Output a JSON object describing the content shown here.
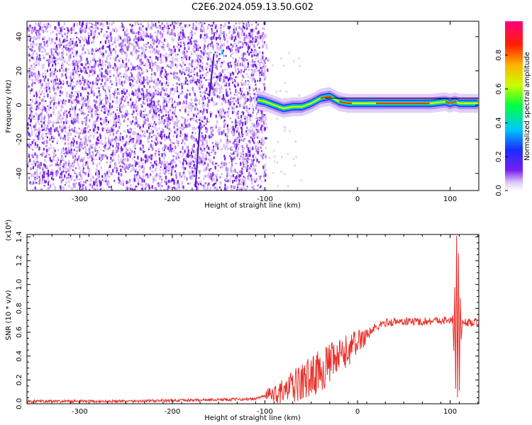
{
  "title": "C2E6.2024.059.13.50.G02",
  "chart_data": [
    {
      "type": "heatmap",
      "xlabel": "Height of straight line (km)",
      "ylabel": "Frequency (Hz)",
      "xlim": [
        -357,
        131
      ],
      "ylim": [
        -50,
        49
      ],
      "xticks": [
        -300,
        -200,
        -100,
        0,
        100
      ],
      "yticks": [
        -40,
        -20,
        0,
        20,
        40
      ],
      "colorbar": {
        "label": "Normalized spectral amplitude",
        "range": [
          0,
          1
        ],
        "ticks": [
          "0.0",
          "0.2",
          "0.4",
          "0.6",
          "0.8"
        ],
        "tick_values": [
          0,
          0.2,
          0.4,
          0.6,
          0.8
        ]
      },
      "noise_region_x": [
        -357,
        -100
      ],
      "signal_ridge": {
        "x": [
          -108,
          -100,
          -90,
          -80,
          -70,
          -60,
          -50,
          -40,
          -30,
          -20,
          -10,
          0,
          20,
          40,
          60,
          80,
          95,
          100,
          105,
          110,
          131
        ],
        "freq": [
          3,
          2,
          0,
          -2,
          -1,
          -1,
          1,
          4,
          5,
          2,
          1,
          1,
          1,
          1,
          1,
          1,
          2,
          1,
          2,
          1,
          1
        ]
      }
    },
    {
      "type": "line",
      "xlabel": "Height of straight line (km)",
      "ylabel": "SNR (10 * v/v)",
      "yscale_label": "(x10⁴)",
      "xlim": [
        -357,
        131
      ],
      "ylim": [
        0,
        1.42
      ],
      "xticks": [
        -300,
        -200,
        -100,
        0,
        100
      ],
      "yticks": [
        0.0,
        0.2,
        0.4,
        0.6,
        0.8,
        1.0,
        1.2,
        1.4
      ],
      "color": "#e8302a",
      "trend": {
        "x": [
          -357,
          -250,
          -180,
          -110,
          -100,
          -80,
          -60,
          -40,
          -20,
          -10,
          0,
          10,
          20,
          30,
          50,
          70,
          90,
          100,
          105,
          131
        ],
        "y": [
          0.02,
          0.02,
          0.03,
          0.04,
          0.07,
          0.1,
          0.18,
          0.28,
          0.38,
          0.45,
          0.52,
          0.58,
          0.64,
          0.68,
          0.69,
          0.69,
          0.7,
          0.7,
          0.68,
          0.68
        ]
      },
      "spike": {
        "x": [
          103,
          104,
          105,
          106,
          107,
          108,
          109,
          110,
          111,
          112,
          113
        ],
        "y": [
          0.72,
          0.45,
          0.95,
          0.15,
          1.42,
          0.08,
          1.25,
          0.12,
          0.9,
          0.55,
          0.68
        ]
      }
    }
  ]
}
